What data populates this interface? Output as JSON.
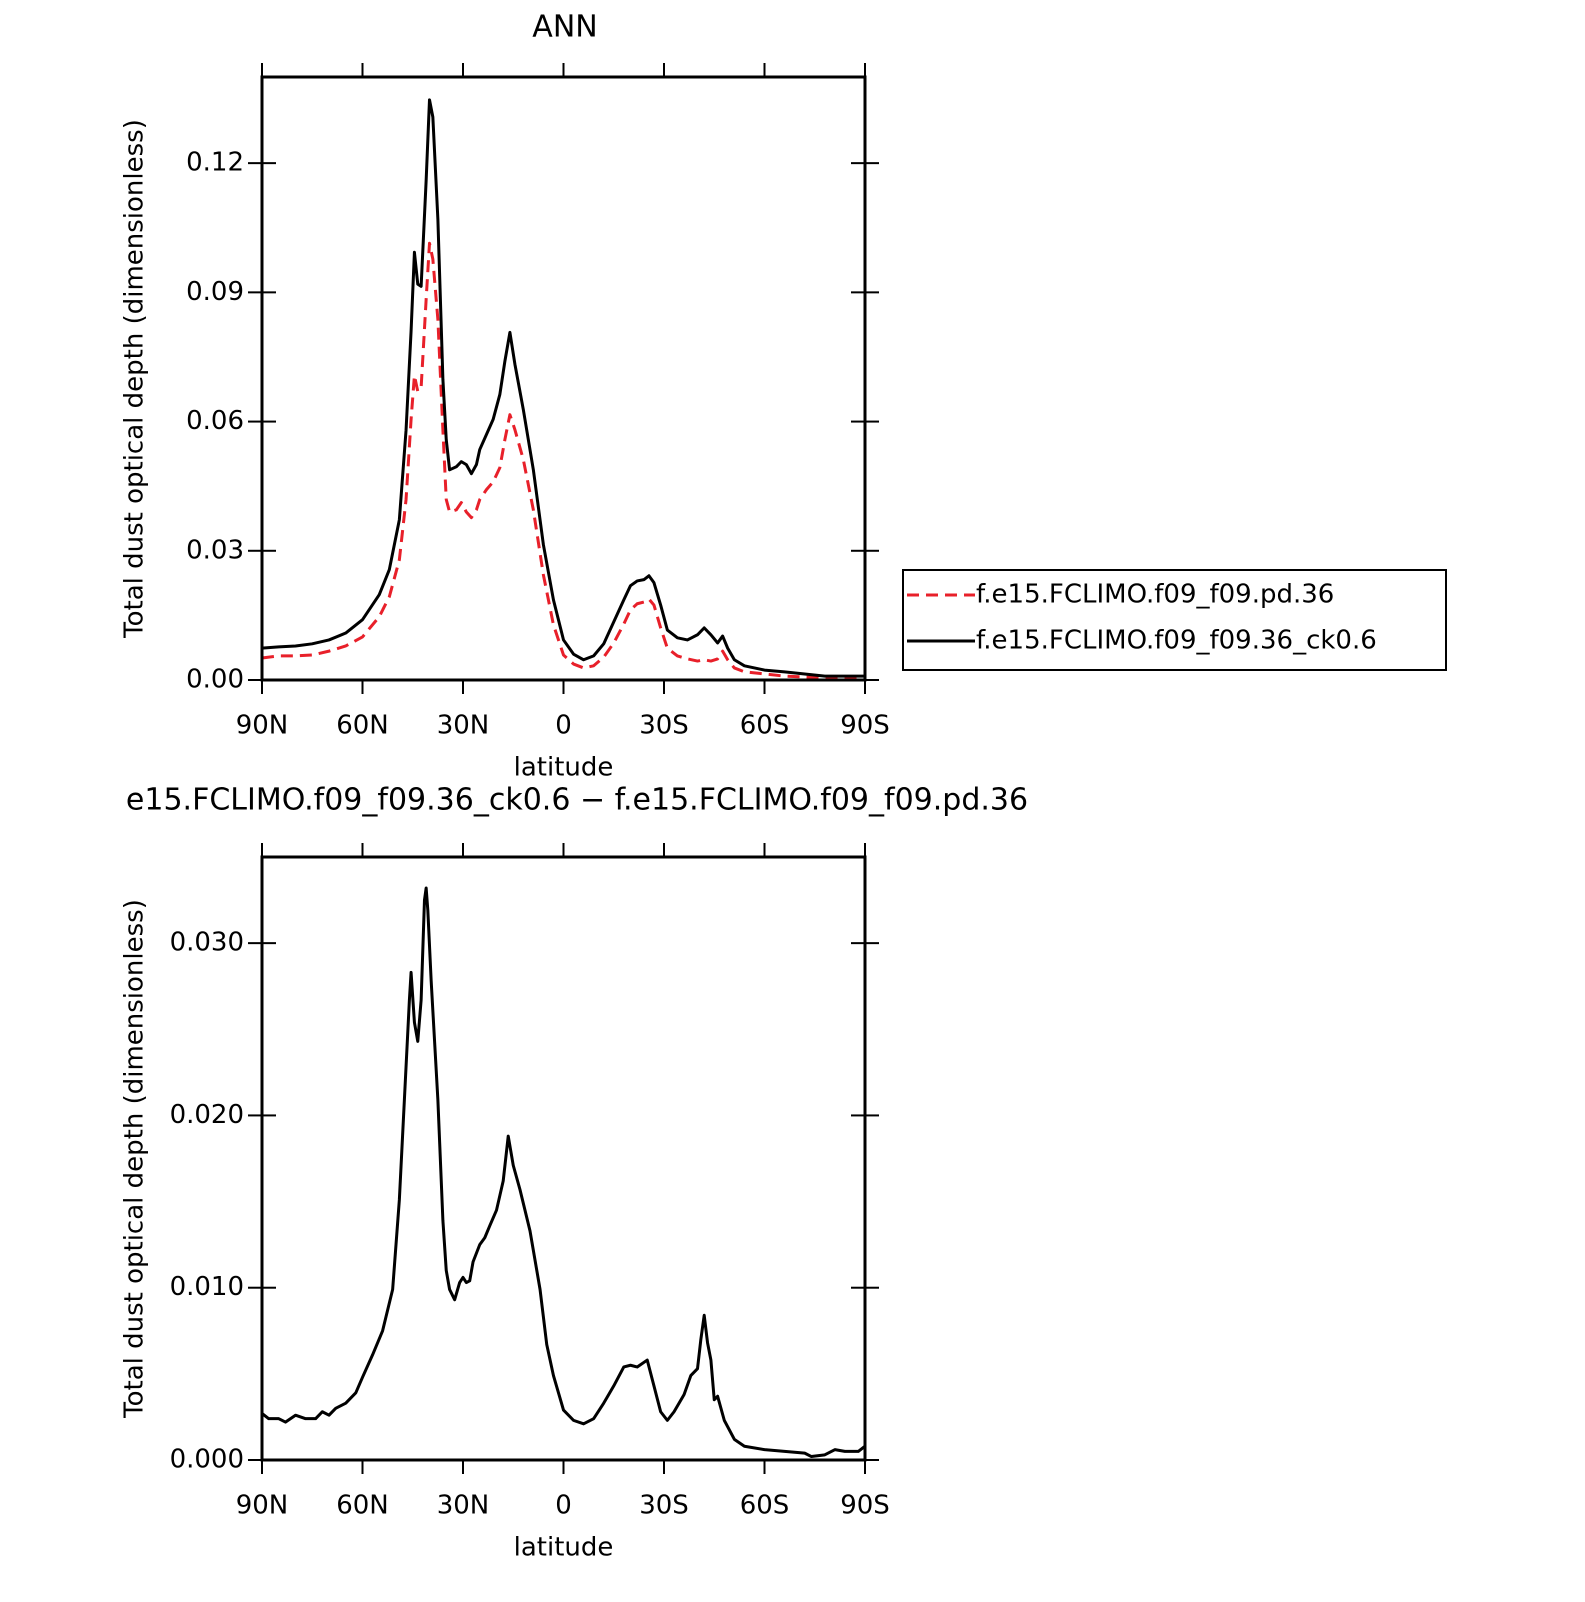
{
  "chart_data": [
    {
      "type": "line",
      "title": "ANN",
      "x_label": "latitude",
      "y_label": "Total dust optical depth (dimensionless)",
      "x": [
        90,
        85,
        80,
        75,
        70,
        65,
        60,
        55,
        52,
        49,
        47,
        45.5,
        44.5,
        43.5,
        42.5,
        41,
        40,
        39,
        37.5,
        36,
        35,
        34,
        32,
        30.5,
        29,
        27.5,
        26,
        25,
        23,
        21,
        19,
        17.5,
        16,
        14.5,
        12,
        9,
        6,
        3,
        0,
        -3,
        -6,
        -9,
        -12,
        -15,
        -18,
        -20,
        -22,
        -24,
        -25.5,
        -27,
        -29,
        -31,
        -34,
        -37,
        -40,
        -42,
        -44,
        -46,
        -47.5,
        -49,
        -51,
        -54,
        -60,
        -66,
        -72,
        -78,
        -84,
        -90
      ],
      "series": [
        {
          "name": "f.e15.FCLIMO.f09_f09.pd.36",
          "color": "#e8202a",
          "linestyle": "dashed",
          "values": [
            0.0051,
            0.0056,
            0.0056,
            0.0058,
            0.0067,
            0.0079,
            0.01,
            0.0147,
            0.0193,
            0.0279,
            0.0419,
            0.0605,
            0.0707,
            0.067,
            0.0679,
            0.0884,
            0.1014,
            0.0977,
            0.0837,
            0.058,
            0.0419,
            0.039,
            0.0395,
            0.0412,
            0.039,
            0.0377,
            0.0395,
            0.0419,
            0.0442,
            0.046,
            0.0493,
            0.0558,
            0.0616,
            0.0581,
            0.0512,
            0.0395,
            0.0244,
            0.0128,
            0.0058,
            0.0037,
            0.0028,
            0.0033,
            0.0053,
            0.0086,
            0.013,
            0.0163,
            0.0177,
            0.0181,
            0.0188,
            0.0174,
            0.0121,
            0.0074,
            0.0056,
            0.0049,
            0.0044,
            0.0047,
            0.0044,
            0.0049,
            0.0067,
            0.0047,
            0.0028,
            0.0019,
            0.0014,
            0.0009,
            0.0007,
            0.0005,
            0.0005,
            0.0005
          ]
        },
        {
          "name": "f.e15.FCLIMO.f09_f09.36_ck0.6",
          "color": "#000000",
          "linestyle": "solid",
          "values": [
            0.0074,
            0.0077,
            0.0079,
            0.0084,
            0.0093,
            0.0109,
            0.014,
            0.0198,
            0.0256,
            0.0372,
            0.058,
            0.081,
            0.0993,
            0.0919,
            0.0914,
            0.116,
            0.1347,
            0.1307,
            0.107,
            0.0698,
            0.0558,
            0.0488,
            0.0495,
            0.0507,
            0.05,
            0.0479,
            0.05,
            0.0535,
            0.057,
            0.0605,
            0.0663,
            0.074,
            0.0807,
            0.0733,
            0.0628,
            0.0488,
            0.0314,
            0.0186,
            0.0093,
            0.006,
            0.0047,
            0.0056,
            0.0084,
            0.0135,
            0.0186,
            0.0219,
            0.023,
            0.0233,
            0.0242,
            0.0226,
            0.0174,
            0.0116,
            0.0098,
            0.0093,
            0.0105,
            0.0121,
            0.0105,
            0.0086,
            0.0102,
            0.0074,
            0.0047,
            0.0033,
            0.0023,
            0.0019,
            0.0014,
            0.0009,
            0.0009,
            0.0009
          ]
        }
      ],
      "xlim": [
        90,
        -90
      ],
      "xticks": [
        {
          "value": 90,
          "label": "90N"
        },
        {
          "value": 60,
          "label": "60N"
        },
        {
          "value": 30,
          "label": "30N"
        },
        0,
        {
          "value": -30,
          "label": "30S"
        },
        {
          "value": -60,
          "label": "60S"
        },
        {
          "value": -90,
          "label": "90S"
        }
      ],
      "ylim": [
        0,
        0.14
      ],
      "yticks": [
        {
          "value": 0,
          "label": "0.00"
        },
        0.03,
        0.06,
        0.09,
        0.12
      ],
      "legend": "right"
    },
    {
      "type": "line",
      "title": "e15.FCLIMO.f09_f09.36_ck0.6 − f.e15.FCLIMO.f09_f09.pd.36",
      "x_label": "latitude",
      "y_label": "Total dust optical depth (dimensionless)",
      "x": [
        90,
        88,
        85,
        83,
        80,
        77,
        74,
        72,
        70,
        68,
        65,
        62,
        60,
        57,
        54,
        51,
        49,
        47.5,
        46,
        45.5,
        44.5,
        43.5,
        42.5,
        41.5,
        41,
        40.5,
        39.5,
        37.5,
        36,
        35,
        34,
        32.5,
        31,
        30,
        29,
        28,
        27,
        25,
        23.5,
        22,
        20,
        18,
        16.5,
        15,
        13,
        10,
        7,
        5,
        3,
        0,
        -3,
        -6,
        -9,
        -12,
        -15,
        -18,
        -20,
        -22,
        -25,
        -27,
        -29,
        -31,
        -33,
        -36,
        -38,
        -40,
        -41,
        -42,
        -43,
        -44,
        -45,
        -46,
        -48,
        -51,
        -54,
        -60,
        -66,
        -72,
        -74,
        -78,
        -81,
        -84,
        -88,
        -90
      ],
      "series": [
        {
          "color": "#000000",
          "linestyle": "solid",
          "values": [
            0.0027,
            0.0024,
            0.0024,
            0.0022,
            0.0026,
            0.0024,
            0.0024,
            0.0028,
            0.0026,
            0.003,
            0.0033,
            0.0039,
            0.0048,
            0.0061,
            0.0075,
            0.0099,
            0.0151,
            0.0209,
            0.0267,
            0.0283,
            0.0254,
            0.0243,
            0.0267,
            0.0325,
            0.0332,
            0.0319,
            0.0278,
            0.0209,
            0.0139,
            0.011,
            0.0099,
            0.0093,
            0.0103,
            0.0106,
            0.0103,
            0.0104,
            0.0115,
            0.0125,
            0.0129,
            0.0136,
            0.0145,
            0.0162,
            0.0188,
            0.0171,
            0.0157,
            0.0133,
            0.0099,
            0.0067,
            0.0049,
            0.0029,
            0.0023,
            0.0021,
            0.0024,
            0.0033,
            0.0043,
            0.0054,
            0.0055,
            0.0054,
            0.0058,
            0.0043,
            0.0028,
            0.0023,
            0.0028,
            0.0038,
            0.0049,
            0.0053,
            0.007,
            0.0084,
            0.0068,
            0.0058,
            0.0035,
            0.0037,
            0.0023,
            0.0012,
            0.0008,
            0.0006,
            0.0005,
            0.0004,
            0.0002,
            0.0003,
            0.0006,
            0.0005,
            0.0005,
            0.0008
          ]
        }
      ],
      "xlim": [
        90,
        -90
      ],
      "xticks": [
        {
          "value": 90,
          "label": "90N"
        },
        {
          "value": 60,
          "label": "60N"
        },
        {
          "value": 30,
          "label": "30N"
        },
        0,
        {
          "value": -30,
          "label": "30S"
        },
        {
          "value": -60,
          "label": "60S"
        },
        {
          "value": -90,
          "label": "90S"
        }
      ],
      "ylim": [
        0,
        0.035
      ],
      "yticks": [
        {
          "value": 0,
          "label": "0.000"
        },
        {
          "value": 0.01,
          "label": "0.010"
        },
        {
          "value": 0.02,
          "label": "0.020"
        },
        {
          "value": 0.03,
          "label": "0.030"
        }
      ]
    }
  ]
}
